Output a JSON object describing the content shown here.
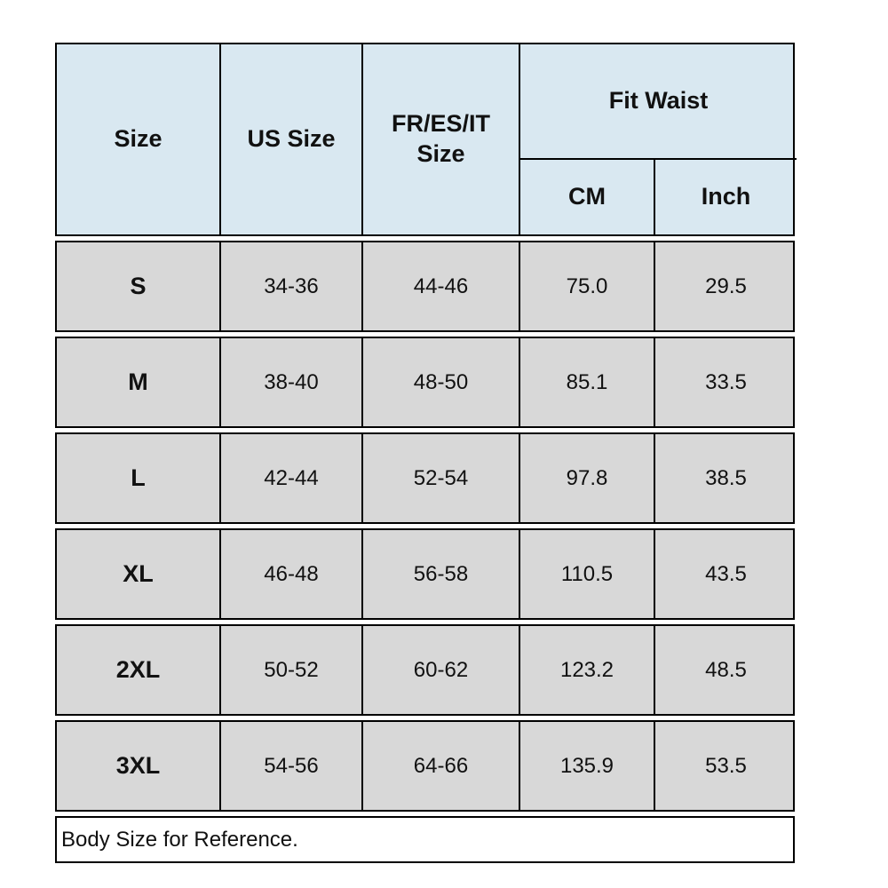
{
  "colors": {
    "header_bg": "#d9e8f1",
    "row_bg": "#d8d8d8",
    "border": "#000000",
    "page_bg": "#ffffff"
  },
  "header": {
    "size": "Size",
    "us_size": "US Size",
    "fr_es_it_size": "FR/ES/IT Size",
    "fit_waist": "Fit Waist",
    "cm": "CM",
    "inch": "Inch"
  },
  "rows": [
    {
      "size": "S",
      "us": "34-36",
      "fr": "44-46",
      "cm": "75.0",
      "inch": "29.5"
    },
    {
      "size": "M",
      "us": "38-40",
      "fr": "48-50",
      "cm": "85.1",
      "inch": "33.5"
    },
    {
      "size": "L",
      "us": "42-44",
      "fr": "52-54",
      "cm": "97.8",
      "inch": "38.5"
    },
    {
      "size": "XL",
      "us": "46-48",
      "fr": "56-58",
      "cm": "110.5",
      "inch": "43.5"
    },
    {
      "size": "2XL",
      "us": "50-52",
      "fr": "60-62",
      "cm": "123.2",
      "inch": "48.5"
    },
    {
      "size": "3XL",
      "us": "54-56",
      "fr": "64-66",
      "cm": "135.9",
      "inch": "53.5"
    }
  ],
  "footer": {
    "note": "Body Size for Reference."
  },
  "chart_data": {
    "type": "table",
    "columns": [
      "Size",
      "US Size",
      "FR/ES/IT Size",
      "Fit Waist CM",
      "Fit Waist Inch"
    ],
    "rows": [
      [
        "S",
        "34-36",
        "44-46",
        75.0,
        29.5
      ],
      [
        "M",
        "38-40",
        "48-50",
        85.1,
        33.5
      ],
      [
        "L",
        "42-44",
        "52-54",
        97.8,
        38.5
      ],
      [
        "XL",
        "46-48",
        "56-58",
        110.5,
        43.5
      ],
      [
        "2XL",
        "50-52",
        "60-62",
        123.2,
        48.5
      ],
      [
        "3XL",
        "54-56",
        "64-66",
        135.9,
        53.5
      ]
    ],
    "note": "Body Size for Reference.",
    "layout": {
      "header_spans": {
        "Fit Waist": [
          "CM",
          "Inch"
        ]
      },
      "grid": "on"
    }
  }
}
